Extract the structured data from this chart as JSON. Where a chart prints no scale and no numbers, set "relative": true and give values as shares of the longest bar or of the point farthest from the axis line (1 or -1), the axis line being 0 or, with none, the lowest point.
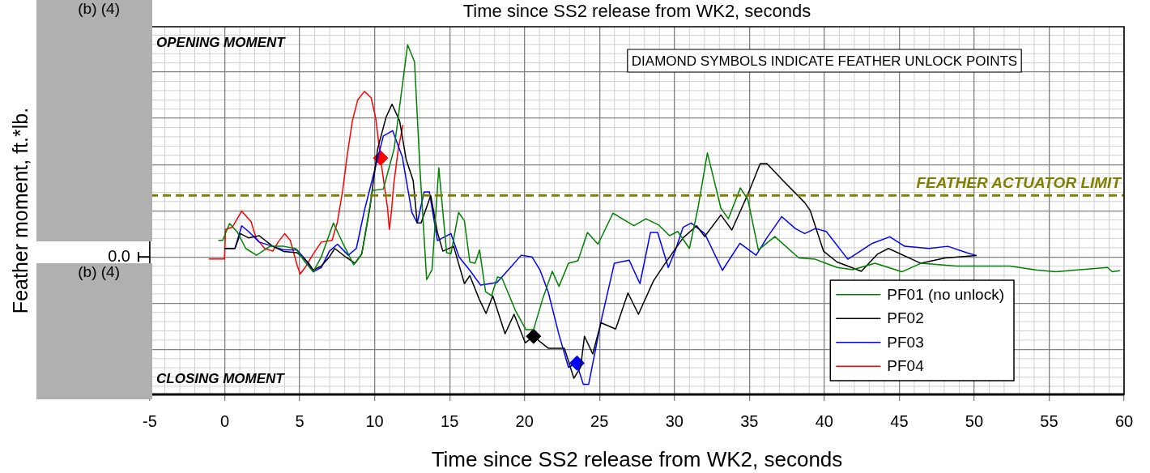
{
  "chart_data": {
    "type": "line",
    "title": "Time since SS2 release from WK2, seconds",
    "xlabel": "Time since SS2 release from WK2, seconds",
    "xlim": [
      -5,
      60
    ],
    "xticks": [
      -5,
      0,
      5,
      10,
      15,
      20,
      25,
      30,
      35,
      40,
      45,
      50,
      55,
      60
    ],
    "relative": true,
    "grid": true,
    "legend": "bottom right",
    "marker": "none",
    "line_style": "solid",
    "series": [
      {
        "name": "PF01 (no unlock)",
        "color": "#008000",
        "x": [
          -0.4,
          -0.14,
          0.32,
          0.86,
          1.4,
          2.12,
          3.02,
          3.92,
          4.73,
          5.36,
          5.9,
          6.44,
          7.25,
          7.88,
          8.6,
          9.14,
          9.86,
          10.58,
          11.3,
          12.2,
          12.66,
          13.02,
          13.47,
          13.83,
          14.28,
          14.8,
          15.09,
          15.6,
          15.99,
          16.35,
          16.7,
          17.0,
          17.4,
          17.8,
          18.2,
          18.5,
          19.4,
          20.1,
          20.6,
          21.2,
          21.85,
          22.3,
          22.93,
          23.56,
          24.2,
          24.9,
          25.9,
          27.3,
          28.1,
          28.96,
          29.68,
          30.22,
          31.0,
          31.57,
          32.2,
          33.1,
          33.6,
          34.4,
          34.9,
          35.6,
          36.7,
          38.3,
          39.4,
          40.85,
          41.9,
          43.38,
          45.18,
          46.44,
          48.8,
          52.4,
          54.2,
          55.45,
          57.07,
          58.9,
          59.2,
          59.7
        ],
        "values": [
          0.078,
          0.078,
          0.157,
          0.115,
          0.04,
          0.008,
          0.05,
          0.05,
          0.04,
          -0.024,
          -0.07,
          0,
          0.16,
          0.064,
          -0.037,
          0.014,
          0.313,
          0.32,
          0.51,
          1.0,
          0.92,
          0.42,
          -0.107,
          -0.06,
          0.42,
          0.02,
          0.015,
          0.21,
          0.17,
          -0.024,
          -0.03,
          0.033,
          -0.164,
          -0.183,
          -0.094,
          -0.1,
          -0.254,
          -0.343,
          -0.343,
          -0.2,
          -0.068,
          -0.139,
          -0.03,
          -0.018,
          0.115,
          0.06,
          0.206,
          0.147,
          0.18,
          0.15,
          0.1,
          0.12,
          0.04,
          0.23,
          0.49,
          0.23,
          0.18,
          0.325,
          0.27,
          0.033,
          0.096,
          -0.005,
          -0.011,
          -0.05,
          -0.06,
          -0.03,
          -0.07,
          -0.03,
          -0.043,
          -0.043,
          -0.062,
          -0.07,
          -0.06,
          -0.05,
          -0.07,
          -0.065
        ]
      },
      {
        "name": "PF02",
        "color": "#000000",
        "x": [
          0,
          0.68,
          1.04,
          1.58,
          2.3,
          3.2,
          3.92,
          4.82,
          5.54,
          5.9,
          6.44,
          6.98,
          7.34,
          8.06,
          8.69,
          9.14,
          9.68,
          10.2,
          10.77,
          11.16,
          11.67,
          12.1,
          12.57,
          12.84,
          13.1,
          13.74,
          14.19,
          14.55,
          15.27,
          15.99,
          16.35,
          16.98,
          17.43,
          17.88,
          18.7,
          19.3,
          20.05,
          20.59,
          21.58,
          22.66,
          23.29,
          23.74,
          24.0,
          24.55,
          25.1,
          26.08,
          26.9,
          27.6,
          28.6,
          29.32,
          30.58,
          31.48,
          32.02,
          33.1,
          33.83,
          34.9,
          35.72,
          36.17,
          37.25,
          38.69,
          39.05,
          39.95,
          40.85,
          41.57,
          42.47,
          43.56,
          44.28,
          46.44,
          48.06,
          50.13
        ],
        "values": [
          0.04,
          0.04,
          0.11,
          0.09,
          0.1,
          0.05,
          0.026,
          0.02,
          -0.024,
          -0.062,
          -0.043,
          0,
          0.04,
          0,
          -0.03,
          0.014,
          0.23,
          0.51,
          0.66,
          0.72,
          0.64,
          0.46,
          0.36,
          0.16,
          0.16,
          0.29,
          0.115,
          0.027,
          0.05,
          -0.126,
          -0.088,
          -0.2,
          -0.266,
          -0.183,
          -0.362,
          -0.27,
          -0.405,
          -0.374,
          -0.43,
          -0.43,
          -0.572,
          -0.52,
          -0.374,
          -0.457,
          -0.31,
          -0.34,
          -0.17,
          -0.27,
          -0.113,
          -0.037,
          0.09,
          0.147,
          0.096,
          0.198,
          0.127,
          0.295,
          0.44,
          0.44,
          0.36,
          0.256,
          0.22,
          0.027,
          -0.024,
          -0.043,
          -0.068,
          0.014,
          0.04,
          -0.03,
          -0.005,
          0.007
        ]
      },
      {
        "name": "PF03",
        "color": "#0000ff",
        "x": [
          0,
          0.68,
          1.13,
          1.58,
          2.3,
          3.2,
          3.92,
          4.82,
          5.36,
          5.9,
          6.44,
          6.98,
          7.52,
          8.24,
          8.78,
          9.32,
          9.86,
          10.58,
          11.2,
          11.85,
          12.48,
          12.84,
          13.3,
          13.65,
          14.19,
          15.09,
          15.63,
          16.35,
          17.07,
          18.16,
          19.06,
          19.78,
          20.5,
          21.04,
          21.58,
          22.3,
          22.93,
          23.47,
          23.92,
          24.28,
          25.1,
          25.99,
          26.98,
          27.7,
          28.4,
          28.88,
          29.59,
          30.04,
          30.58,
          31.12,
          32.02,
          33.2,
          34.37,
          35.45,
          36.17,
          37.16,
          38.06,
          38.69,
          39.41,
          40.13,
          41.57,
          43.2,
          44.37,
          45.36,
          46.98,
          48.24,
          49.5,
          50.13
        ],
        "values": [
          0.04,
          0.04,
          0.147,
          0.12,
          0.07,
          0.05,
          0.033,
          0.033,
          -0.011,
          -0.07,
          -0.05,
          0.027,
          0.06,
          0.008,
          0.04,
          0.22,
          0.37,
          0.57,
          0.595,
          0.47,
          0.21,
          0.16,
          0.306,
          0.306,
          0.077,
          0.11,
          0,
          -0.063,
          -0.133,
          -0.12,
          -0.05,
          0.008,
          0,
          -0.063,
          -0.165,
          -0.367,
          -0.52,
          -0.5,
          -0.6,
          -0.6,
          -0.305,
          -0.03,
          -0.015,
          -0.126,
          0.115,
          0.115,
          -0.05,
          0.027,
          0.14,
          0.16,
          0.11,
          -0.063,
          0.064,
          0.008,
          0.09,
          0.19,
          0.134,
          0.11,
          0.134,
          0.12,
          -0.011,
          0.064,
          0.095,
          0.05,
          0.04,
          0.05,
          0.02,
          0.007
        ]
      },
      {
        "name": "PF04",
        "color": "#ff0000",
        "x": [
          -1.04,
          -0.02,
          0.05,
          0.5,
          1.13,
          1.76,
          2.08,
          2.66,
          3.2,
          3.56,
          4.0,
          4.37,
          4.82,
          5.03,
          5.36,
          5.9,
          6.44,
          7.16,
          7.52,
          7.88,
          8.15,
          8.51,
          8.87,
          9.32,
          9.77,
          10.08,
          10.4,
          10.86,
          10.98,
          11.13,
          11.27,
          11.58,
          11.88
        ],
        "values": [
          -0.01,
          -0.01,
          0.13,
          0.14,
          0.216,
          0.166,
          0.09,
          0.04,
          0.027,
          0.07,
          0.11,
          0.078,
          -0.037,
          -0.08,
          -0.05,
          0.014,
          0.07,
          0.078,
          0.166,
          0.32,
          0.47,
          0.64,
          0.74,
          0.78,
          0.75,
          0.65,
          0.46,
          0.23,
          0.13,
          0.22,
          0.34,
          0.51,
          0.62
        ]
      },
      {
        "type": "scatter",
        "marker": "diamond",
        "color": "#ff0000",
        "x": [
          10.4
        ],
        "values": [
          0.466
        ]
      },
      {
        "type": "scatter",
        "marker": "diamond",
        "color": "#000000",
        "x": [
          20.6
        ],
        "values": [
          -0.374
        ]
      },
      {
        "type": "scatter",
        "marker": "diamond",
        "color": "#0000ff",
        "x": [
          23.5
        ],
        "values": [
          -0.5
        ]
      }
    ],
    "ref_lines": [
      {
        "axis": "y",
        "value": 0.29,
        "label": "FEATHER ACTUATOR LIMIT",
        "color": "#808000",
        "line_style": "dashed"
      }
    ],
    "annotations": [
      "OPENING MOMENT",
      "CLOSING MOMENT",
      "DIAMOND SYMBOLS INDICATE FEATHER UNLOCK POINTS",
      "(b) (4)",
      "(b) (4)",
      "0.0",
      "Feather moment, ft.*lb."
    ]
  }
}
